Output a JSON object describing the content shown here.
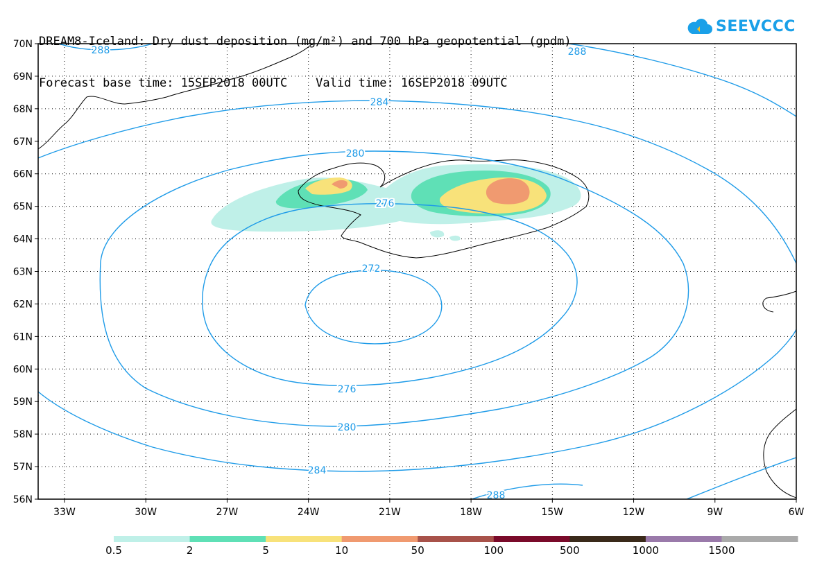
{
  "header": {
    "title_line1": "DREAM8-Iceland: Dry dust deposition (mg/m²) and 700 hPa geopotential (gpdm)",
    "title_line2": "Forecast base time: 15SEP2018 00UTC    Valid time: 16SEP2018 09UTC"
  },
  "logo": {
    "text": "SEEVCCC"
  },
  "map": {
    "lon_ticks": [
      "33W",
      "30W",
      "27W",
      "24W",
      "21W",
      "18W",
      "15W",
      "12W",
      "9W",
      "6W"
    ],
    "lat_ticks": [
      "70N",
      "69N",
      "68N",
      "67N",
      "66N",
      "65N",
      "64N",
      "63N",
      "62N",
      "61N",
      "60N",
      "59N",
      "58N",
      "57N",
      "56N"
    ],
    "contour_labels": [
      "288",
      "288",
      "284",
      "280",
      "276",
      "272",
      "276",
      "280",
      "284",
      "288"
    ]
  },
  "legend": {
    "labels": [
      "0.5",
      "2",
      "5",
      "10",
      "50",
      "100",
      "500",
      "1000",
      "1500"
    ],
    "colors": [
      "#bff0e8",
      "#5fe0b6",
      "#f8e27a",
      "#f09a70",
      "#a8524a",
      "#7a0a2a",
      "#3a2a1a",
      "#9a7aaa",
      "#aaaaaa"
    ]
  }
}
